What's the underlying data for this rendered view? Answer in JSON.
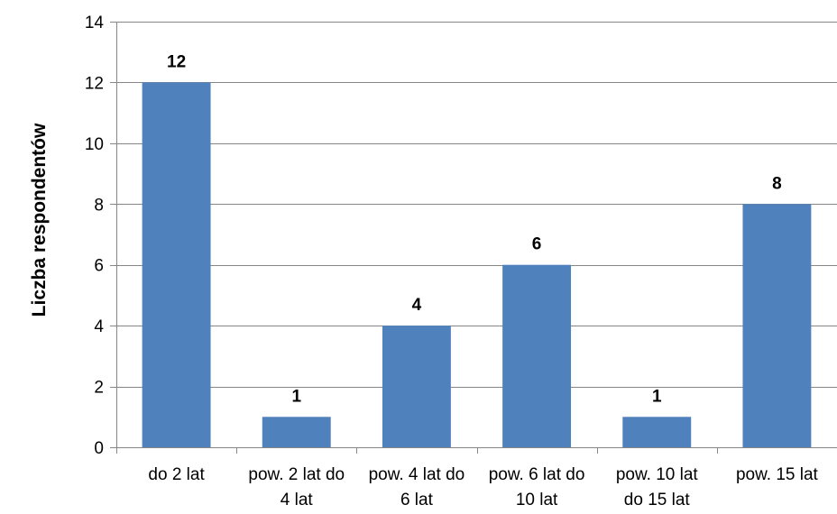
{
  "chart_data": {
    "type": "bar",
    "categories": [
      "do 2 lat",
      "pow. 2 lat do 4 lat",
      "pow. 4 lat do 6 lat",
      "pow. 6 lat do 10 lat",
      "pow. 10 lat do 15 lat",
      "pow. 15 lat"
    ],
    "category_lines": [
      [
        "do 2 lat"
      ],
      [
        "pow. 2 lat do",
        "4 lat"
      ],
      [
        "pow. 4 lat do",
        "6 lat"
      ],
      [
        "pow. 6 lat do",
        "10 lat"
      ],
      [
        "pow. 10 lat",
        "do 15 lat"
      ],
      [
        "pow. 15 lat"
      ]
    ],
    "values": [
      12,
      1,
      4,
      6,
      1,
      8
    ],
    "data_labels": [
      "12",
      "1",
      "4",
      "6",
      "1",
      "8"
    ],
    "title": "",
    "xlabel": "",
    "ylabel": "Liczba respondentów",
    "ylim": [
      0,
      14
    ],
    "yticks": [
      0,
      2,
      4,
      6,
      8,
      10,
      12,
      14
    ],
    "ytick_labels": [
      "0",
      "2",
      "4",
      "6",
      "8",
      "10",
      "12",
      "14"
    ],
    "grid": true,
    "legend": "none",
    "bar_color": "#4f81bd",
    "grid_color": "#868686"
  }
}
